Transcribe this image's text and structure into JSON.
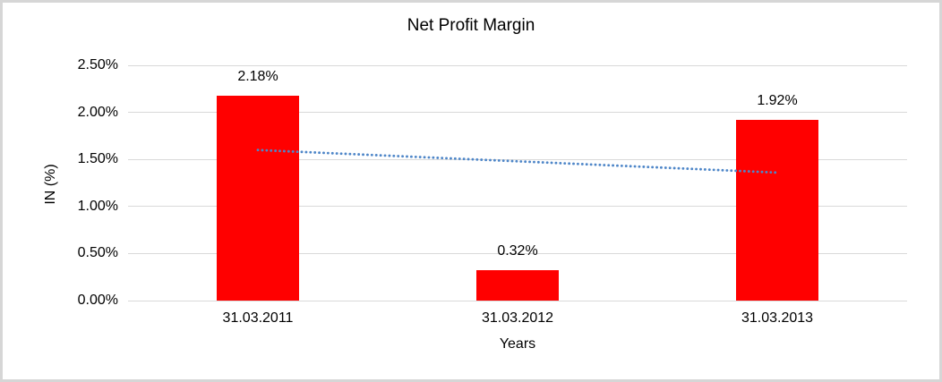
{
  "frame": {
    "background": "#FFFFFF",
    "border_color": "#D6D6D6"
  },
  "chart_data": {
    "type": "bar",
    "title": "Net Profit Margin",
    "xlabel": "Years",
    "ylabel": "IN (%)",
    "categories": [
      "31.03.2011",
      "31.03.2012",
      "31.03.2013"
    ],
    "series": [
      {
        "name": "Net Profit Margin",
        "values": [
          2.18,
          0.32,
          1.92
        ],
        "data_labels": [
          "2.18%",
          "0.32%",
          "1.92%"
        ],
        "color": "#FF0000"
      }
    ],
    "ylim": [
      0,
      2.5
    ],
    "yticks": [
      {
        "value": 2.5,
        "label": "2.50%"
      },
      {
        "value": 2.0,
        "label": "2.00%"
      },
      {
        "value": 1.5,
        "label": "1.50%"
      },
      {
        "value": 1.0,
        "label": "1.00%"
      },
      {
        "value": 0.5,
        "label": "0.50%"
      },
      {
        "value": 0.0,
        "label": "0.00%"
      }
    ],
    "grid": true,
    "gridline_color": "#D9D9D9",
    "legend_position": "none",
    "trendline": {
      "type": "linear",
      "style": "dotted",
      "color": "#4E86C8",
      "start": {
        "category_index": 0,
        "value": 1.6
      },
      "end": {
        "category_index": 2,
        "value": 1.36
      }
    }
  }
}
